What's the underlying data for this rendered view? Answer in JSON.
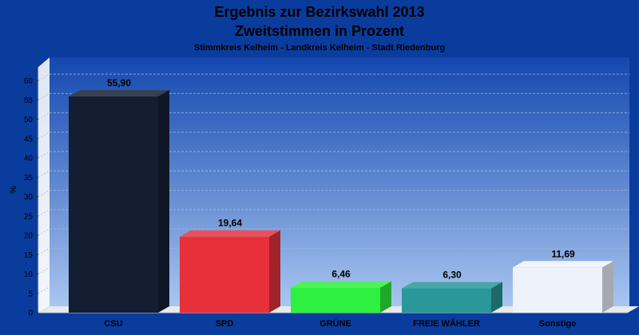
{
  "chart_data": {
    "type": "bar",
    "title": "Ergebnis zur Bezirkswahl 2013",
    "subtitle_1": "Zweitstimmen in Prozent",
    "subtitle_2": "Stimmkreis Kelheim - Landkreis Kelheim - Stadt Riedenburg",
    "ylabel": "%",
    "xlabel": "",
    "ylim": [
      0,
      62
    ],
    "yticks": [
      0,
      5,
      10,
      15,
      20,
      25,
      30,
      35,
      40,
      45,
      50,
      55,
      60
    ],
    "grid": true,
    "categories": [
      "CSU",
      "SPD",
      "GRÜNE",
      "FREIE WÄHLER",
      "Sonstige"
    ],
    "values": [
      55.9,
      19.64,
      6.46,
      6.3,
      11.69
    ],
    "value_labels": [
      "55,90",
      "19,64",
      "6,46",
      "6,30",
      "11,69"
    ],
    "colors": [
      "#141e33",
      "#e8303a",
      "#2ef03e",
      "#2a9898",
      "#eef2fb"
    ]
  }
}
